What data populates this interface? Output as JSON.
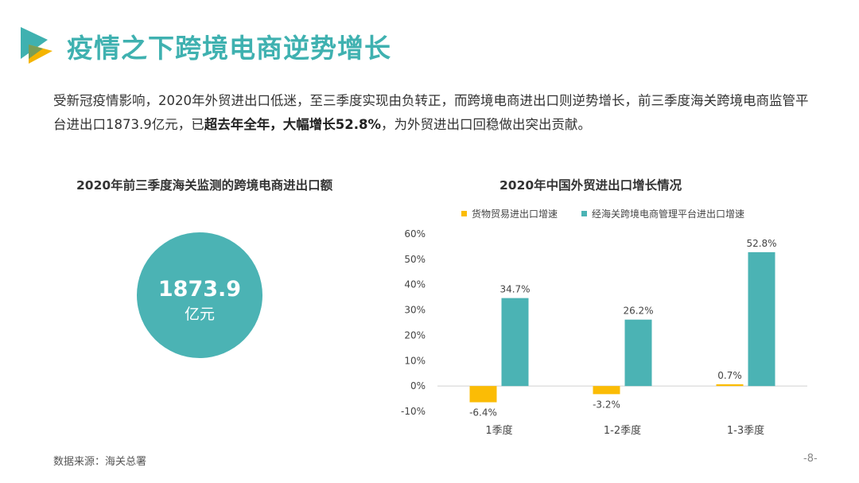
{
  "header": {
    "title": "疫情之下跨境电商逆势增长"
  },
  "intro": {
    "part1": "受新冠疫情影响，2020年外贸进出口低迷，至三季度实现由负转正，而跨境电商进出口则逆势增长，前三季度海关跨境电商监管平台进出口1873.9亿元，已",
    "bold": "超去年全年，大幅增长52.8%",
    "part2": "，为外贸进出口回稳做出突出贡献。"
  },
  "left_panel": {
    "title": "2020年前三季度海关监测的跨境电商进出口额",
    "value": "1873.9",
    "unit": "亿元"
  },
  "chart_data": {
    "type": "bar",
    "title": "2020年中国外贸进出口增长情况",
    "categories": [
      "1季度",
      "1-2季度",
      "1-3季度"
    ],
    "series": [
      {
        "name": "货物贸易进出口增速",
        "color": "#fbbc05",
        "values": [
          -6.4,
          -3.2,
          0.7
        ],
        "labels": [
          "-6.4%",
          "-3.2%",
          "0.7%"
        ]
      },
      {
        "name": "经海关跨境电商管理平台进出口增速",
        "color": "#4bb3b4",
        "values": [
          34.7,
          26.2,
          52.8
        ],
        "labels": [
          "34.7%",
          "26.2%",
          "52.8%"
        ]
      }
    ],
    "ylim": [
      -10,
      60
    ],
    "yticks": [
      -10,
      0,
      10,
      20,
      30,
      40,
      50,
      60
    ],
    "ytick_labels": [
      "-10%",
      "0%",
      "10%",
      "20%",
      "30%",
      "40%",
      "50%",
      "60%"
    ],
    "legend_position": "top",
    "grid": false
  },
  "footer": {
    "source": "数据来源：海关总署",
    "page": "-8-"
  }
}
